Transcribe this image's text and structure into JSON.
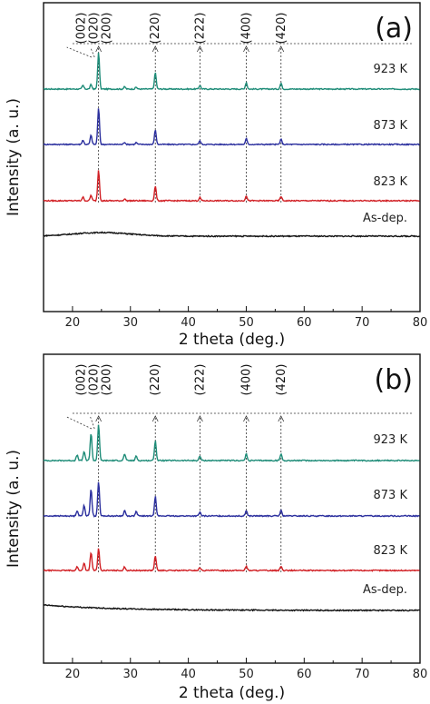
{
  "chart_data": [
    {
      "type": "line",
      "panel_label": "(a)",
      "xlabel": "2 theta (deg.)",
      "ylabel": "Intensity (a. u.)",
      "xlim": [
        15,
        80
      ],
      "xticks": [
        20,
        30,
        40,
        50,
        60,
        70,
        80
      ],
      "grid": false,
      "peak_labels": [
        {
          "label": "(002)",
          "x": 23.3
        },
        {
          "label": "(020)",
          "x": 23.8
        },
        {
          "label": "(200)",
          "x": 24.5
        },
        {
          "label": "(220)",
          "x": 34.3
        },
        {
          "label": "(222)",
          "x": 42.0
        },
        {
          "label": "(400)",
          "x": 50.0
        },
        {
          "label": "(420)",
          "x": 56.0
        }
      ],
      "series": [
        {
          "name": "923 K",
          "color": "#1e8c78",
          "peaks": [
            {
              "x": 21.8,
              "h": 0.1
            },
            {
              "x": 23.2,
              "h": 0.12
            },
            {
              "x": 24.5,
              "h": 1.0
            },
            {
              "x": 29.0,
              "h": 0.06
            },
            {
              "x": 31.0,
              "h": 0.05
            },
            {
              "x": 34.3,
              "h": 0.45
            },
            {
              "x": 42.0,
              "h": 0.1
            },
            {
              "x": 50.0,
              "h": 0.18
            },
            {
              "x": 56.0,
              "h": 0.16
            }
          ]
        },
        {
          "name": "873 K",
          "color": "#2b2f9e",
          "peaks": [
            {
              "x": 21.8,
              "h": 0.12
            },
            {
              "x": 23.2,
              "h": 0.25
            },
            {
              "x": 24.5,
              "h": 1.0
            },
            {
              "x": 29.0,
              "h": 0.06
            },
            {
              "x": 31.0,
              "h": 0.05
            },
            {
              "x": 34.3,
              "h": 0.4
            },
            {
              "x": 42.0,
              "h": 0.1
            },
            {
              "x": 50.0,
              "h": 0.16
            },
            {
              "x": 56.0,
              "h": 0.14
            }
          ]
        },
        {
          "name": "823 K",
          "color": "#d11f24",
          "peaks": [
            {
              "x": 21.8,
              "h": 0.1
            },
            {
              "x": 23.2,
              "h": 0.15
            },
            {
              "x": 24.5,
              "h": 0.85
            },
            {
              "x": 29.0,
              "h": 0.05
            },
            {
              "x": 34.3,
              "h": 0.4
            },
            {
              "x": 42.0,
              "h": 0.09
            },
            {
              "x": 50.0,
              "h": 0.14
            },
            {
              "x": 56.0,
              "h": 0.12
            }
          ]
        },
        {
          "name": "As-dep.",
          "color": "#111111",
          "peaks": [],
          "hump": true
        }
      ]
    },
    {
      "type": "line",
      "panel_label": "(b)",
      "xlabel": "2 theta (deg.)",
      "ylabel": "Intensity (a. u.)",
      "xlim": [
        15,
        80
      ],
      "xticks": [
        20,
        30,
        40,
        50,
        60,
        70,
        80
      ],
      "grid": false,
      "peak_labels": [
        {
          "label": "(002)",
          "x": 23.3
        },
        {
          "label": "(020)",
          "x": 23.8
        },
        {
          "label": "(200)",
          "x": 24.5
        },
        {
          "label": "(220)",
          "x": 34.3
        },
        {
          "label": "(222)",
          "x": 42.0
        },
        {
          "label": "(400)",
          "x": 50.0
        },
        {
          "label": "(420)",
          "x": 56.0
        }
      ],
      "series": [
        {
          "name": "923 K",
          "color": "#1e8c78",
          "peaks": [
            {
              "x": 20.8,
              "h": 0.15
            },
            {
              "x": 22.0,
              "h": 0.25
            },
            {
              "x": 23.2,
              "h": 0.75
            },
            {
              "x": 24.5,
              "h": 1.0
            },
            {
              "x": 29.0,
              "h": 0.18
            },
            {
              "x": 31.0,
              "h": 0.12
            },
            {
              "x": 34.3,
              "h": 0.55
            },
            {
              "x": 42.0,
              "h": 0.12
            },
            {
              "x": 50.0,
              "h": 0.18
            },
            {
              "x": 56.0,
              "h": 0.18
            }
          ]
        },
        {
          "name": "873 K",
          "color": "#2b2f9e",
          "peaks": [
            {
              "x": 20.8,
              "h": 0.15
            },
            {
              "x": 22.0,
              "h": 0.3
            },
            {
              "x": 23.2,
              "h": 0.75
            },
            {
              "x": 24.5,
              "h": 0.95
            },
            {
              "x": 29.0,
              "h": 0.15
            },
            {
              "x": 31.0,
              "h": 0.12
            },
            {
              "x": 34.3,
              "h": 0.55
            },
            {
              "x": 42.0,
              "h": 0.1
            },
            {
              "x": 50.0,
              "h": 0.15
            },
            {
              "x": 56.0,
              "h": 0.15
            }
          ]
        },
        {
          "name": "823 K",
          "color": "#d11f24",
          "peaks": [
            {
              "x": 20.8,
              "h": 0.1
            },
            {
              "x": 22.0,
              "h": 0.2
            },
            {
              "x": 23.2,
              "h": 0.5
            },
            {
              "x": 24.5,
              "h": 0.6
            },
            {
              "x": 29.0,
              "h": 0.1
            },
            {
              "x": 34.3,
              "h": 0.4
            },
            {
              "x": 42.0,
              "h": 0.08
            },
            {
              "x": 50.0,
              "h": 0.12
            },
            {
              "x": 56.0,
              "h": 0.12
            }
          ]
        },
        {
          "name": "As-dep.",
          "color": "#111111",
          "peaks": [],
          "hump": false
        }
      ]
    }
  ]
}
